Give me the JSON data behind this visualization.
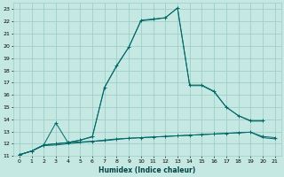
{
  "xlabel": "Humidex (Indice chaleur)",
  "ylabel": "",
  "bg_color": "#c6e8e2",
  "grid_color": "#9ecec8",
  "line_color": "#006868",
  "xlim": [
    -0.5,
    21.5
  ],
  "ylim": [
    11,
    23.5
  ],
  "xticks": [
    0,
    1,
    2,
    3,
    4,
    5,
    6,
    7,
    8,
    9,
    10,
    11,
    12,
    13,
    14,
    15,
    16,
    17,
    18,
    19,
    20,
    21
  ],
  "yticks": [
    11,
    12,
    13,
    14,
    15,
    16,
    17,
    18,
    19,
    20,
    21,
    22,
    23
  ],
  "lines": [
    {
      "x": [
        0,
        1,
        2,
        3,
        4,
        5,
        6,
        7,
        8,
        9,
        10,
        11,
        12,
        13,
        14,
        15,
        16,
        17,
        18,
        19,
        20,
        21
      ],
      "y": [
        11.1,
        11.4,
        11.9,
        12.0,
        12.1,
        12.15,
        12.2,
        12.3,
        12.4,
        12.45,
        12.5,
        12.55,
        12.6,
        12.65,
        12.7,
        12.75,
        12.8,
        12.85,
        12.9,
        12.95,
        12.6,
        12.5
      ],
      "marker": "+",
      "has_line": true
    },
    {
      "x": [
        0,
        1,
        2,
        3,
        4,
        5,
        6,
        7,
        8,
        9,
        10,
        11,
        12,
        13,
        14,
        15,
        16,
        17,
        18,
        19,
        20,
        21
      ],
      "y": [
        11.1,
        11.4,
        11.85,
        11.9,
        12.0,
        12.1,
        12.2,
        12.25,
        12.35,
        12.45,
        12.5,
        12.55,
        12.6,
        12.65,
        12.7,
        12.75,
        12.8,
        12.85,
        12.9,
        12.95,
        12.5,
        12.4
      ],
      "marker": null,
      "has_line": true
    },
    {
      "x": [
        0,
        1,
        2,
        3,
        4,
        5,
        6,
        7,
        8,
        9,
        10,
        11,
        12,
        13,
        14,
        15,
        16,
        17,
        18,
        19,
        20
      ],
      "y": [
        11.1,
        11.4,
        11.9,
        13.7,
        12.1,
        12.3,
        12.6,
        16.6,
        18.4,
        19.9,
        22.1,
        22.2,
        22.3,
        23.1,
        16.8,
        16.8,
        16.3,
        15.0,
        14.3,
        13.9,
        13.9
      ],
      "marker": "+",
      "has_line": true
    },
    {
      "x": [
        0,
        1,
        2,
        3,
        4,
        5,
        6,
        7,
        8,
        9,
        10,
        11,
        12,
        13,
        14,
        15,
        16,
        17,
        18,
        19,
        20
      ],
      "y": [
        11.1,
        11.4,
        11.9,
        12.0,
        12.1,
        12.3,
        12.55,
        16.6,
        18.35,
        19.9,
        22.05,
        22.15,
        22.3,
        23.1,
        16.75,
        16.75,
        16.25,
        15.0,
        14.3,
        13.85,
        13.85
      ],
      "marker": null,
      "has_line": true
    }
  ]
}
